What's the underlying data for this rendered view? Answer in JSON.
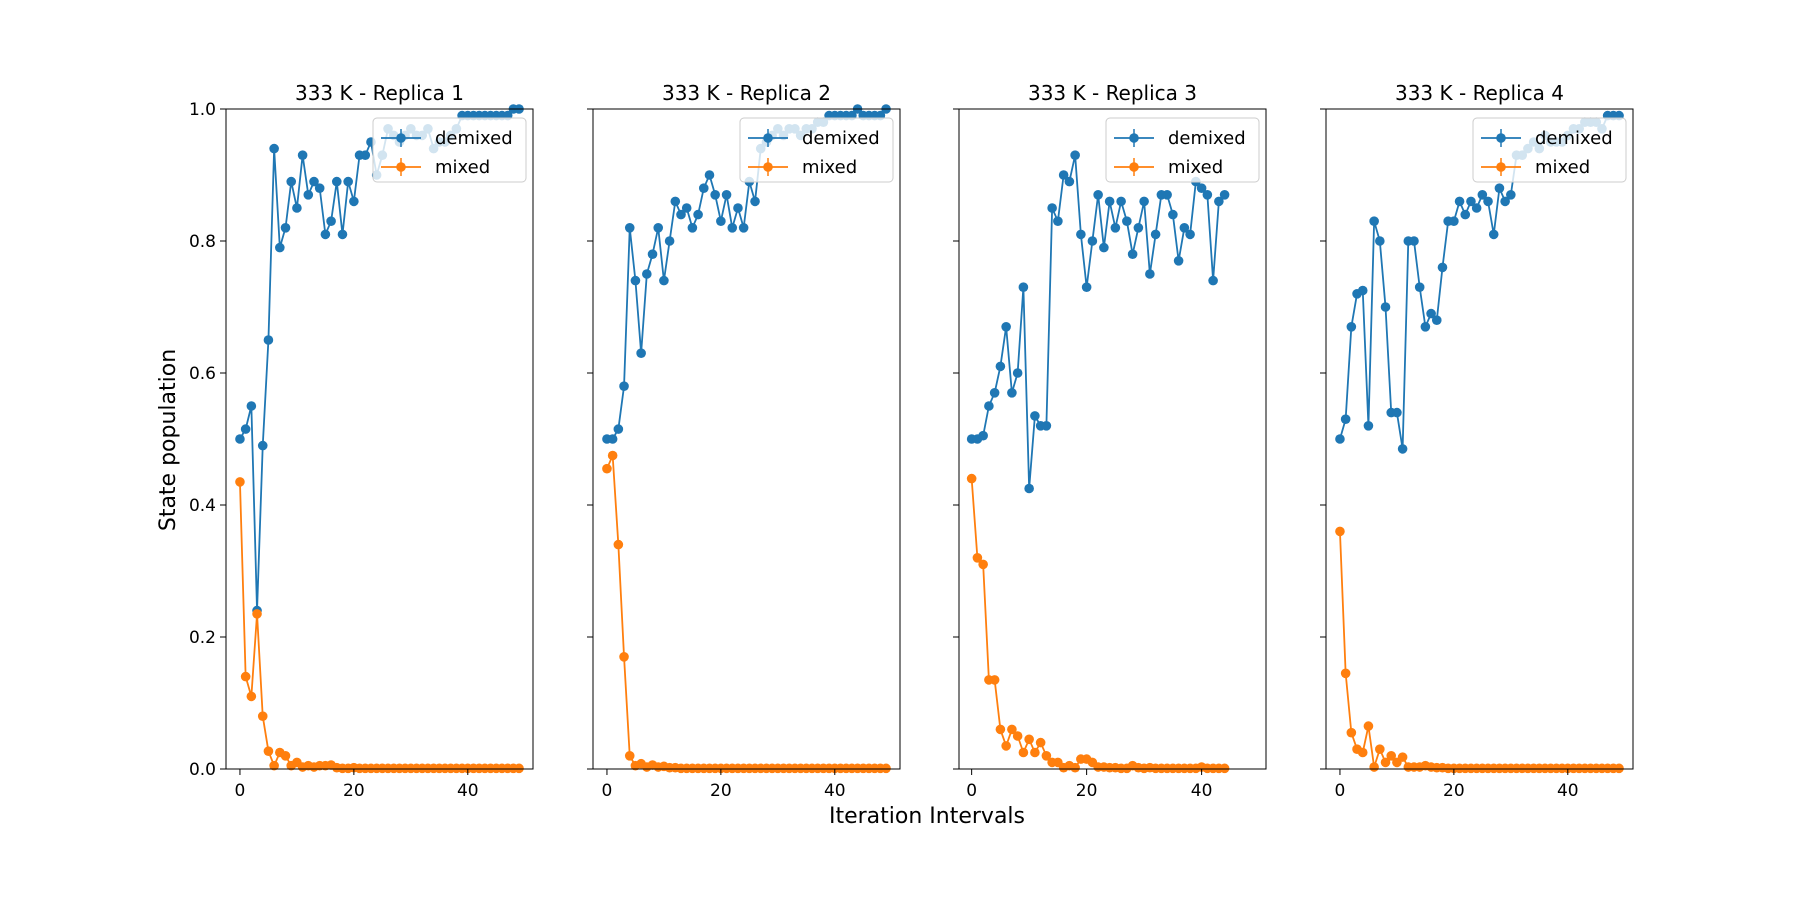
{
  "figure": {
    "xlabel": "Iteration Intervals",
    "ylabel": "State population"
  },
  "chart_data": [
    {
      "type": "line",
      "title": "333 K - Replica 1",
      "xlim": [
        -2.45,
        51.45
      ],
      "ylim": [
        0,
        1
      ],
      "xticks": [
        0,
        20,
        40
      ],
      "yticks": [
        0.0,
        0.2,
        0.4,
        0.6,
        0.8,
        1.0
      ],
      "legend": "top-right",
      "series": [
        {
          "name": "demixed",
          "color": "#1f77b4",
          "x": [
            0,
            1,
            2,
            3,
            4,
            5,
            6,
            7,
            8,
            9,
            10,
            11,
            12,
            13,
            14,
            15,
            16,
            17,
            18,
            19,
            20,
            21,
            22,
            23,
            24,
            25,
            26,
            27,
            28,
            29,
            30,
            31,
            32,
            33,
            34,
            35,
            36,
            37,
            38,
            39,
            40,
            41,
            42,
            43,
            44,
            45,
            46,
            47,
            48,
            49
          ],
          "values": [
            0.5,
            0.515,
            0.55,
            0.24,
            0.49,
            0.65,
            0.94,
            0.79,
            0.82,
            0.89,
            0.85,
            0.93,
            0.87,
            0.89,
            0.88,
            0.81,
            0.83,
            0.89,
            0.81,
            0.89,
            0.86,
            0.93,
            0.93,
            0.95,
            0.9,
            0.93,
            0.97,
            0.96,
            0.95,
            0.96,
            0.97,
            0.96,
            0.96,
            0.97,
            0.94,
            0.95,
            0.95,
            0.96,
            0.97,
            0.99,
            0.99,
            0.99,
            0.99,
            0.99,
            0.99,
            0.99,
            0.99,
            0.99,
            1.0,
            1.0
          ]
        },
        {
          "name": "mixed",
          "color": "#ff7f0e",
          "x": [
            0,
            1,
            2,
            3,
            4,
            5,
            6,
            7,
            8,
            9,
            10,
            11,
            12,
            13,
            14,
            15,
            16,
            17,
            18,
            19,
            20,
            21,
            22,
            23,
            24,
            25,
            26,
            27,
            28,
            29,
            30,
            31,
            32,
            33,
            34,
            35,
            36,
            37,
            38,
            39,
            40,
            41,
            42,
            43,
            44,
            45,
            46,
            47,
            48,
            49
          ],
          "values": [
            0.435,
            0.14,
            0.11,
            0.235,
            0.08,
            0.027,
            0.005,
            0.025,
            0.02,
            0.005,
            0.01,
            0.003,
            0.005,
            0.003,
            0.005,
            0.005,
            0.006,
            0.002,
            0.001,
            0.001,
            0.002,
            0.001,
            0.001,
            0.001,
            0.001,
            0.001,
            0.001,
            0.001,
            0.001,
            0.001,
            0.001,
            0.001,
            0.001,
            0.001,
            0.001,
            0.001,
            0.001,
            0.001,
            0.001,
            0.001,
            0.001,
            0.001,
            0.001,
            0.001,
            0.001,
            0.001,
            0.001,
            0.001,
            0.001,
            0.001
          ]
        }
      ]
    },
    {
      "type": "line",
      "title": "333 K - Replica 2",
      "xlim": [
        -2.45,
        51.45
      ],
      "ylim": [
        0,
        1
      ],
      "xticks": [
        0,
        20,
        40
      ],
      "yticks": [
        0.0,
        0.2,
        0.4,
        0.6,
        0.8,
        1.0
      ],
      "legend": "top-right",
      "series": [
        {
          "name": "demixed",
          "color": "#1f77b4",
          "x": [
            0,
            1,
            2,
            3,
            4,
            5,
            6,
            7,
            8,
            9,
            10,
            11,
            12,
            13,
            14,
            15,
            16,
            17,
            18,
            19,
            20,
            21,
            22,
            23,
            24,
            25,
            26,
            27,
            28,
            29,
            30,
            31,
            32,
            33,
            34,
            35,
            36,
            37,
            38,
            39,
            40,
            41,
            42,
            43,
            44,
            45,
            46,
            47,
            48,
            49
          ],
          "values": [
            0.5,
            0.5,
            0.515,
            0.58,
            0.82,
            0.74,
            0.63,
            0.75,
            0.78,
            0.82,
            0.74,
            0.8,
            0.86,
            0.84,
            0.85,
            0.82,
            0.84,
            0.88,
            0.9,
            0.87,
            0.83,
            0.87,
            0.82,
            0.85,
            0.82,
            0.89,
            0.86,
            0.94,
            0.95,
            0.96,
            0.97,
            0.96,
            0.97,
            0.97,
            0.96,
            0.97,
            0.97,
            0.98,
            0.98,
            0.99,
            0.99,
            0.99,
            0.99,
            0.99,
            1.0,
            0.99,
            0.99,
            0.99,
            0.99,
            1.0
          ]
        },
        {
          "name": "mixed",
          "color": "#ff7f0e",
          "x": [
            0,
            1,
            2,
            3,
            4,
            5,
            6,
            7,
            8,
            9,
            10,
            11,
            12,
            13,
            14,
            15,
            16,
            17,
            18,
            19,
            20,
            21,
            22,
            23,
            24,
            25,
            26,
            27,
            28,
            29,
            30,
            31,
            32,
            33,
            34,
            35,
            36,
            37,
            38,
            39,
            40,
            41,
            42,
            43,
            44,
            45,
            46,
            47,
            48,
            49
          ],
          "values": [
            0.455,
            0.475,
            0.34,
            0.17,
            0.02,
            0.005,
            0.008,
            0.003,
            0.006,
            0.003,
            0.004,
            0.002,
            0.002,
            0.001,
            0.001,
            0.001,
            0.001,
            0.001,
            0.001,
            0.001,
            0.001,
            0.001,
            0.001,
            0.001,
            0.001,
            0.001,
            0.001,
            0.001,
            0.001,
            0.001,
            0.001,
            0.001,
            0.001,
            0.001,
            0.001,
            0.001,
            0.001,
            0.001,
            0.001,
            0.001,
            0.001,
            0.001,
            0.001,
            0.001,
            0.001,
            0.001,
            0.001,
            0.001,
            0.001,
            0.001
          ]
        }
      ]
    },
    {
      "type": "line",
      "title": "333 K - Replica 3",
      "xlim": [
        -2.2,
        51.2
      ],
      "ylim": [
        0,
        1
      ],
      "xticks": [
        0,
        20,
        40
      ],
      "yticks": [
        0.0,
        0.2,
        0.4,
        0.6,
        0.8,
        1.0
      ],
      "legend": "top-right",
      "series": [
        {
          "name": "demixed",
          "color": "#1f77b4",
          "x": [
            0,
            1,
            2,
            3,
            4,
            5,
            6,
            7,
            8,
            9,
            10,
            11,
            12,
            13,
            14,
            15,
            16,
            17,
            18,
            19,
            20,
            21,
            22,
            23,
            24,
            25,
            26,
            27,
            28,
            29,
            30,
            31,
            32,
            33,
            34,
            35,
            36,
            37,
            38,
            39,
            40,
            41,
            42,
            43,
            44
          ],
          "values": [
            0.5,
            0.5,
            0.505,
            0.55,
            0.57,
            0.61,
            0.67,
            0.57,
            0.6,
            0.73,
            0.425,
            0.535,
            0.52,
            0.52,
            0.85,
            0.83,
            0.9,
            0.89,
            0.93,
            0.81,
            0.73,
            0.8,
            0.87,
            0.79,
            0.86,
            0.82,
            0.86,
            0.83,
            0.78,
            0.82,
            0.86,
            0.75,
            0.81,
            0.87,
            0.87,
            0.84,
            0.77,
            0.82,
            0.81,
            0.89,
            0.88,
            0.87,
            0.74,
            0.86,
            0.87
          ]
        },
        {
          "name": "mixed",
          "color": "#ff7f0e",
          "x": [
            0,
            1,
            2,
            3,
            4,
            5,
            6,
            7,
            8,
            9,
            10,
            11,
            12,
            13,
            14,
            15,
            16,
            17,
            18,
            19,
            20,
            21,
            22,
            23,
            24,
            25,
            26,
            27,
            28,
            29,
            30,
            31,
            32,
            33,
            34,
            35,
            36,
            37,
            38,
            39,
            40,
            41,
            42,
            43,
            44
          ],
          "values": [
            0.44,
            0.32,
            0.31,
            0.135,
            0.135,
            0.06,
            0.035,
            0.06,
            0.05,
            0.025,
            0.045,
            0.025,
            0.04,
            0.02,
            0.01,
            0.01,
            0.002,
            0.005,
            0.002,
            0.015,
            0.015,
            0.01,
            0.003,
            0.003,
            0.002,
            0.002,
            0.001,
            0.001,
            0.005,
            0.002,
            0.001,
            0.002,
            0.001,
            0.001,
            0.001,
            0.001,
            0.001,
            0.001,
            0.001,
            0.001,
            0.003,
            0.001,
            0.001,
            0.001,
            0.001
          ]
        }
      ]
    },
    {
      "type": "line",
      "title": "333 K - Replica 4",
      "xlim": [
        -2.45,
        51.45
      ],
      "ylim": [
        0,
        1
      ],
      "xticks": [
        0,
        20,
        40
      ],
      "yticks": [
        0.0,
        0.2,
        0.4,
        0.6,
        0.8,
        1.0
      ],
      "legend": "top-right",
      "series": [
        {
          "name": "demixed",
          "color": "#1f77b4",
          "x": [
            0,
            1,
            2,
            3,
            4,
            5,
            6,
            7,
            8,
            9,
            10,
            11,
            12,
            13,
            14,
            15,
            16,
            17,
            18,
            19,
            20,
            21,
            22,
            23,
            24,
            25,
            26,
            27,
            28,
            29,
            30,
            31,
            32,
            33,
            34,
            35,
            36,
            37,
            38,
            39,
            40,
            41,
            42,
            43,
            44,
            45,
            46,
            47,
            48,
            49
          ],
          "values": [
            0.5,
            0.53,
            0.67,
            0.72,
            0.725,
            0.52,
            0.83,
            0.8,
            0.7,
            0.54,
            0.54,
            0.485,
            0.8,
            0.8,
            0.73,
            0.67,
            0.69,
            0.68,
            0.76,
            0.83,
            0.83,
            0.86,
            0.84,
            0.86,
            0.85,
            0.87,
            0.86,
            0.81,
            0.88,
            0.86,
            0.87,
            0.93,
            0.93,
            0.94,
            0.95,
            0.94,
            0.96,
            0.95,
            0.95,
            0.95,
            0.96,
            0.97,
            0.97,
            0.98,
            0.98,
            0.98,
            0.97,
            0.99,
            0.99,
            0.99
          ]
        },
        {
          "name": "mixed",
          "color": "#ff7f0e",
          "x": [
            0,
            1,
            2,
            3,
            4,
            5,
            6,
            7,
            8,
            9,
            10,
            11,
            12,
            13,
            14,
            15,
            16,
            17,
            18,
            19,
            20,
            21,
            22,
            23,
            24,
            25,
            26,
            27,
            28,
            29,
            30,
            31,
            32,
            33,
            34,
            35,
            36,
            37,
            38,
            39,
            40,
            41,
            42,
            43,
            44,
            45,
            46,
            47,
            48,
            49
          ],
          "values": [
            0.36,
            0.145,
            0.055,
            0.03,
            0.025,
            0.065,
            0.003,
            0.03,
            0.01,
            0.02,
            0.01,
            0.018,
            0.003,
            0.003,
            0.003,
            0.005,
            0.003,
            0.002,
            0.002,
            0.001,
            0.001,
            0.001,
            0.001,
            0.001,
            0.001,
            0.001,
            0.001,
            0.001,
            0.001,
            0.001,
            0.001,
            0.001,
            0.001,
            0.001,
            0.001,
            0.001,
            0.001,
            0.001,
            0.001,
            0.001,
            0.001,
            0.001,
            0.001,
            0.001,
            0.001,
            0.001,
            0.001,
            0.001,
            0.001,
            0.001
          ]
        }
      ]
    }
  ]
}
